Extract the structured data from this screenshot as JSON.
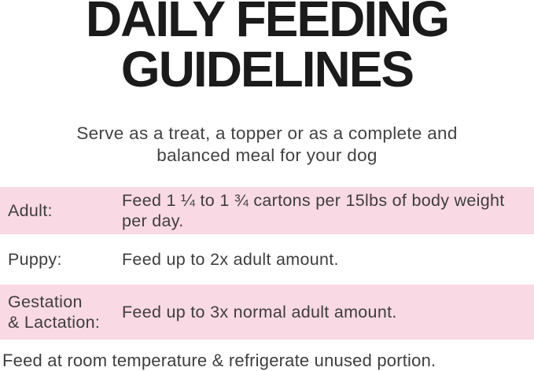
{
  "title": {
    "line1": "DAILY FEEDING",
    "line2": "GUIDELINES"
  },
  "subtitle": "Serve as a treat, a topper or as a complete and balanced meal for your dog",
  "table": {
    "rows": [
      {
        "label": "Adult:",
        "description": "Feed 1 ¼ to 1 ¾ cartons per 15lbs of body weight per day.",
        "highlighted": true
      },
      {
        "label": "Puppy:",
        "description": "Feed up to 2x adult amount.",
        "highlighted": false
      },
      {
        "label": "Gestation\n& Lactation:",
        "description": "Feed up to 3x normal adult amount.",
        "highlighted": true
      }
    ]
  },
  "footer": "Feed at room temperature & refrigerate unused portion.",
  "colors": {
    "highlight_pink": "#f9d9e3",
    "title_black": "#1b1b1b",
    "body_text": "#3e3e3e"
  }
}
